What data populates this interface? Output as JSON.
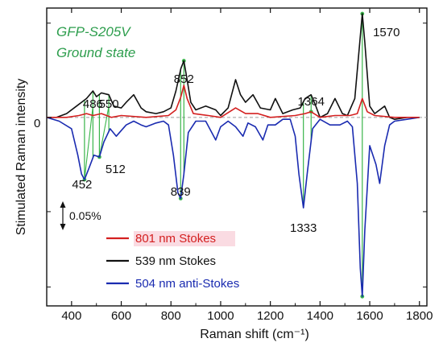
{
  "chart_data": {
    "type": "line",
    "xlabel": "Raman shift (cm⁻¹)",
    "ylabel": "Stimulated Raman intensity",
    "xlim": [
      300,
      1830
    ],
    "ylim": [
      -1.0,
      0.58
    ],
    "x_ticks": [
      400,
      600,
      800,
      1000,
      1200,
      1400,
      1600,
      1800
    ],
    "x_tick_labels": [
      "400",
      "600",
      "800",
      "1000",
      "1200",
      "1400",
      "1600",
      "1800"
    ],
    "y_zero_label": "0",
    "scale_bar_label": "0.05%",
    "annotations": {
      "sample": "GFP-S205V",
      "state": "Ground state",
      "colors": {
        "sample_text": "#2e9e4e",
        "green_lines": "#39b54a"
      }
    },
    "peak_labels": [
      {
        "text": "486",
        "x": 486
      },
      {
        "text": "550",
        "x": 550
      },
      {
        "text": "852",
        "x": 852
      },
      {
        "text": "1364",
        "x": 1364
      },
      {
        "text": "1570",
        "x": 1570
      },
      {
        "text": "452",
        "x": 452
      },
      {
        "text": "512",
        "x": 512
      },
      {
        "text": "839",
        "x": 839
      },
      {
        "text": "1333",
        "x": 1333
      }
    ],
    "legend": {
      "placement": "lower-center",
      "entries": [
        {
          "name": "801 nm Stokes",
          "color": "#d42020",
          "highlight": "#fadbe2"
        },
        {
          "name": "539 nm Stokes",
          "color": "#111111"
        },
        {
          "name": "504 nm anti-Stokes",
          "color": "#1a2bb0"
        }
      ]
    },
    "series": [
      {
        "name": "801 nm Stokes",
        "color": "#d42020",
        "points": [
          [
            300,
            0.0
          ],
          [
            380,
            0.0
          ],
          [
            430,
            0.01
          ],
          [
            460,
            0.02
          ],
          [
            486,
            0.01
          ],
          [
            520,
            0.02
          ],
          [
            560,
            0.0
          ],
          [
            600,
            0.01
          ],
          [
            700,
            0.0
          ],
          [
            790,
            0.01
          ],
          [
            820,
            0.04
          ],
          [
            840,
            0.11
          ],
          [
            852,
            0.17
          ],
          [
            865,
            0.1
          ],
          [
            890,
            0.02
          ],
          [
            950,
            0.01
          ],
          [
            1000,
            0.0
          ],
          [
            1060,
            0.05
          ],
          [
            1100,
            0.02
          ],
          [
            1150,
            0.02
          ],
          [
            1200,
            0.0
          ],
          [
            1300,
            0.01
          ],
          [
            1340,
            0.02
          ],
          [
            1364,
            0.03
          ],
          [
            1400,
            0.0
          ],
          [
            1460,
            0.01
          ],
          [
            1520,
            0.01
          ],
          [
            1550,
            0.02
          ],
          [
            1570,
            0.1
          ],
          [
            1590,
            0.03
          ],
          [
            1620,
            0.01
          ],
          [
            1700,
            0.0
          ],
          [
            1800,
            0.0
          ]
        ]
      },
      {
        "name": "539 nm Stokes",
        "color": "#111111",
        "points": [
          [
            300,
            0.0
          ],
          [
            340,
            0.0
          ],
          [
            380,
            0.02
          ],
          [
            420,
            0.06
          ],
          [
            440,
            0.08
          ],
          [
            460,
            0.1
          ],
          [
            486,
            0.14
          ],
          [
            500,
            0.11
          ],
          [
            520,
            0.13
          ],
          [
            550,
            0.12
          ],
          [
            570,
            0.06
          ],
          [
            600,
            0.05
          ],
          [
            620,
            0.08
          ],
          [
            650,
            0.12
          ],
          [
            680,
            0.05
          ],
          [
            700,
            0.03
          ],
          [
            740,
            0.02
          ],
          [
            770,
            0.03
          ],
          [
            800,
            0.05
          ],
          [
            820,
            0.14
          ],
          [
            840,
            0.26
          ],
          [
            852,
            0.3
          ],
          [
            865,
            0.2
          ],
          [
            880,
            0.08
          ],
          [
            900,
            0.04
          ],
          [
            940,
            0.06
          ],
          [
            980,
            0.04
          ],
          [
            1000,
            0.01
          ],
          [
            1030,
            0.05
          ],
          [
            1060,
            0.2
          ],
          [
            1080,
            0.12
          ],
          [
            1100,
            0.08
          ],
          [
            1130,
            0.12
          ],
          [
            1160,
            0.05
          ],
          [
            1200,
            0.04
          ],
          [
            1220,
            0.1
          ],
          [
            1250,
            0.02
          ],
          [
            1290,
            0.04
          ],
          [
            1320,
            0.05
          ],
          [
            1340,
            0.1
          ],
          [
            1364,
            0.12
          ],
          [
            1380,
            0.07
          ],
          [
            1400,
            0.0
          ],
          [
            1430,
            0.02
          ],
          [
            1460,
            0.1
          ],
          [
            1490,
            0.02
          ],
          [
            1510,
            0.01
          ],
          [
            1540,
            0.1
          ],
          [
            1560,
            0.4
          ],
          [
            1570,
            0.55
          ],
          [
            1580,
            0.4
          ],
          [
            1600,
            0.06
          ],
          [
            1620,
            0.02
          ],
          [
            1640,
            0.04
          ],
          [
            1660,
            0.06
          ],
          [
            1680,
            0.0
          ],
          [
            1700,
            -0.01
          ],
          [
            1750,
            0.0
          ],
          [
            1800,
            0.0
          ]
        ]
      },
      {
        "name": "504 nm anti-Stokes",
        "color": "#1a2bb0",
        "points": [
          [
            300,
            0.0
          ],
          [
            350,
            -0.02
          ],
          [
            400,
            -0.06
          ],
          [
            425,
            -0.2
          ],
          [
            440,
            -0.3
          ],
          [
            452,
            -0.33
          ],
          [
            470,
            -0.27
          ],
          [
            490,
            -0.2
          ],
          [
            512,
            -0.21
          ],
          [
            530,
            -0.13
          ],
          [
            555,
            -0.06
          ],
          [
            580,
            -0.1
          ],
          [
            600,
            -0.07
          ],
          [
            620,
            -0.04
          ],
          [
            650,
            -0.02
          ],
          [
            680,
            -0.04
          ],
          [
            700,
            -0.05
          ],
          [
            740,
            -0.03
          ],
          [
            770,
            -0.02
          ],
          [
            790,
            -0.04
          ],
          [
            810,
            -0.2
          ],
          [
            828,
            -0.4
          ],
          [
            839,
            -0.43
          ],
          [
            852,
            -0.3
          ],
          [
            870,
            -0.08
          ],
          [
            900,
            -0.02
          ],
          [
            940,
            -0.02
          ],
          [
            980,
            -0.12
          ],
          [
            1000,
            -0.05
          ],
          [
            1030,
            -0.02
          ],
          [
            1060,
            -0.05
          ],
          [
            1090,
            -0.1
          ],
          [
            1110,
            -0.03
          ],
          [
            1140,
            -0.05
          ],
          [
            1170,
            -0.12
          ],
          [
            1190,
            -0.04
          ],
          [
            1220,
            -0.04
          ],
          [
            1250,
            -0.01
          ],
          [
            1280,
            -0.01
          ],
          [
            1300,
            -0.1
          ],
          [
            1315,
            -0.3
          ],
          [
            1333,
            -0.48
          ],
          [
            1350,
            -0.28
          ],
          [
            1370,
            -0.06
          ],
          [
            1400,
            -0.01
          ],
          [
            1440,
            -0.04
          ],
          [
            1480,
            -0.04
          ],
          [
            1510,
            -0.02
          ],
          [
            1530,
            -0.05
          ],
          [
            1550,
            -0.35
          ],
          [
            1562,
            -0.8
          ],
          [
            1570,
            -0.95
          ],
          [
            1580,
            -0.6
          ],
          [
            1600,
            -0.15
          ],
          [
            1625,
            -0.25
          ],
          [
            1640,
            -0.35
          ],
          [
            1660,
            -0.15
          ],
          [
            1680,
            -0.04
          ],
          [
            1700,
            -0.02
          ],
          [
            1750,
            -0.01
          ],
          [
            1800,
            0.0
          ]
        ]
      }
    ]
  }
}
